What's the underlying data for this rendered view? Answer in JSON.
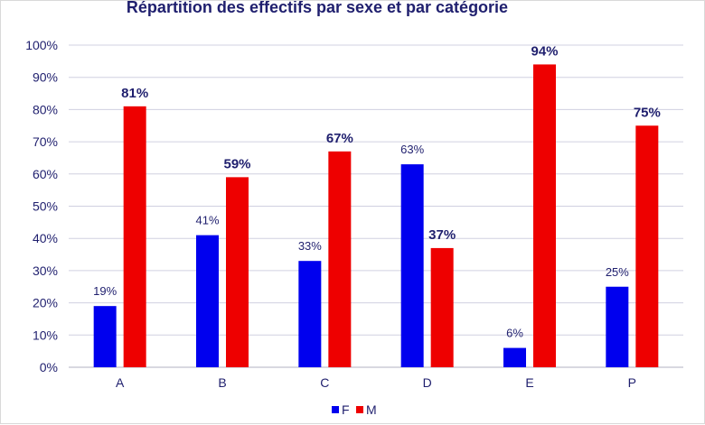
{
  "chart_data": {
    "type": "bar",
    "title": "Répartition des effectifs par sexe et par catégorie",
    "xlabel": "",
    "ylabel": "",
    "categories": [
      "A",
      "B",
      "C",
      "D",
      "E",
      "P"
    ],
    "series": [
      {
        "name": "F",
        "values": [
          19,
          41,
          33,
          63,
          6,
          25
        ],
        "labels": [
          "19%",
          "41%",
          "33%",
          "63%",
          "6%",
          "25%"
        ],
        "color": "#0000ee"
      },
      {
        "name": "M",
        "values": [
          81,
          59,
          67,
          37,
          94,
          75
        ],
        "labels": [
          "81%",
          "59%",
          "67%",
          "37%",
          "94%",
          "75%"
        ],
        "color": "#ee0000"
      }
    ],
    "ylim": [
      0,
      100
    ],
    "yticks": [
      "0%",
      "10%",
      "20%",
      "30%",
      "40%",
      "50%",
      "60%",
      "70%",
      "80%",
      "90%",
      "100%"
    ],
    "grid": true,
    "legend_position": "bottom"
  }
}
